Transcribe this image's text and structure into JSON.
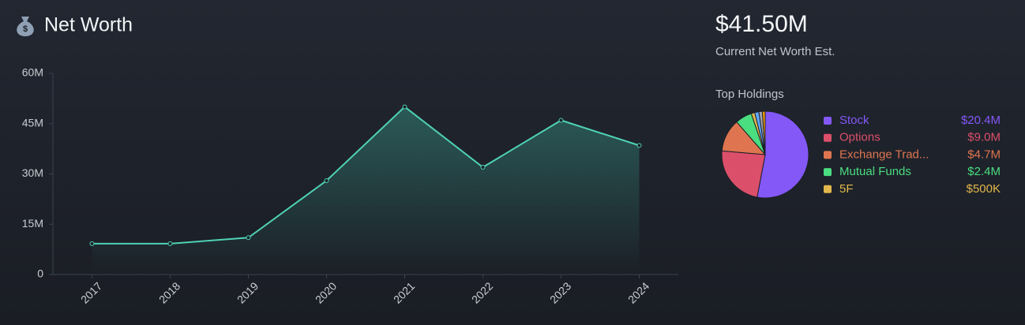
{
  "summary": {
    "value": "$41.50M",
    "label": "Current Net Worth Est."
  },
  "chart_data": [
    {
      "type": "line",
      "title": "Net Worth",
      "categories": [
        "2017",
        "2018",
        "2019",
        "2020",
        "2021",
        "2022",
        "2023",
        "2024"
      ],
      "values": [
        9.2,
        9.2,
        11,
        28,
        50,
        32,
        46,
        38.5
      ],
      "color": "#4fd1b5",
      "area": true,
      "ylim": [
        0,
        60
      ],
      "yticks": [
        0,
        {
          "value": 15,
          "label": "15M"
        },
        {
          "value": 30,
          "label": "30M"
        },
        {
          "value": 45,
          "label": "45M"
        },
        {
          "value": 60,
          "label": "60M"
        }
      ]
    },
    {
      "type": "pie",
      "title": "Top Holdings",
      "categories": [
        "Stock",
        "Options",
        "Exchange Trad...",
        "Mutual Funds",
        "5F",
        null,
        null,
        null
      ],
      "values": [
        20400000,
        9000000,
        4700000,
        2400000,
        500000,
        600000,
        500000,
        400000
      ],
      "value_labels": [
        "$20.4M",
        "$9.0M",
        "$4.7M",
        "$2.4M",
        "$500K",
        null,
        null,
        null
      ],
      "colors": [
        "#8458f7",
        "#dc4f6a",
        "#df7550",
        "#4ade80",
        "#e2b84c",
        "#60a5fa",
        "#9ca3af",
        "#f59e0b"
      ]
    }
  ]
}
